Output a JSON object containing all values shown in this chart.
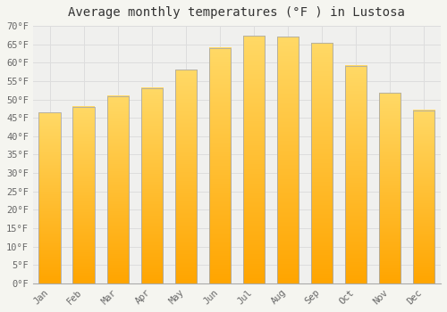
{
  "title": "Average monthly temperatures (°F ) in Lustosa",
  "months": [
    "Jan",
    "Feb",
    "Mar",
    "Apr",
    "May",
    "Jun",
    "Jul",
    "Aug",
    "Sep",
    "Oct",
    "Nov",
    "Dec"
  ],
  "values": [
    46.4,
    48.0,
    50.9,
    53.1,
    58.1,
    64.0,
    67.3,
    67.1,
    65.3,
    59.2,
    51.8,
    47.1
  ],
  "bar_color_top": "#FFD966",
  "bar_color_bottom": "#FFA500",
  "bar_edge_color": "#AAAAAA",
  "ylim": [
    0,
    70
  ],
  "yticks": [
    0,
    5,
    10,
    15,
    20,
    25,
    30,
    35,
    40,
    45,
    50,
    55,
    60,
    65,
    70
  ],
  "ylabel_suffix": "°F",
  "background_color": "#f5f5f0",
  "plot_bg_color": "#f0f0ee",
  "grid_color": "#dddddd",
  "title_fontsize": 10,
  "tick_fontsize": 7.5,
  "font_family": "monospace",
  "tick_color": "#666666",
  "title_color": "#333333"
}
